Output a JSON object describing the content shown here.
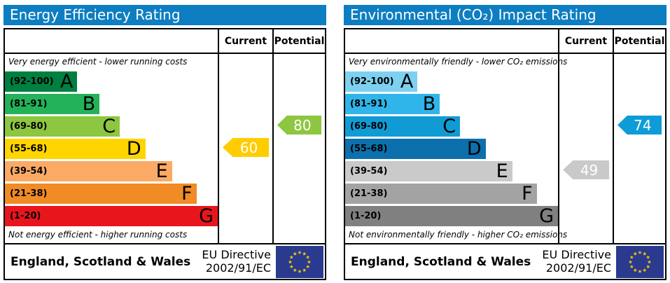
{
  "accent_colors": {
    "header_bar": "#0d7ec1",
    "eu_flag_blue": "#293a8f",
    "eu_flag_star": "#ffcc00"
  },
  "chart_data": [
    {
      "type": "epc-band-rating",
      "title": "Energy Efficiency Rating",
      "columns": [
        "Current",
        "Potential"
      ],
      "top_caption": "Very energy efficient - lower running costs",
      "bottom_caption": "Not energy efficient - higher running costs",
      "bands": [
        {
          "letter": "A",
          "range": "(92-100)",
          "min": 92,
          "max": 100,
          "color": "#008040",
          "width_pct": 34
        },
        {
          "letter": "B",
          "range": "(81-91)",
          "min": 81,
          "max": 91,
          "color": "#23b259",
          "width_pct": 44.5
        },
        {
          "letter": "C",
          "range": "(69-80)",
          "min": 69,
          "max": 80,
          "color": "#8dc63f",
          "width_pct": 54
        },
        {
          "letter": "D",
          "range": "(55-68)",
          "min": 55,
          "max": 68,
          "color": "#ffd500",
          "width_pct": 66
        },
        {
          "letter": "E",
          "range": "(39-54)",
          "min": 39,
          "max": 54,
          "color": "#fbaa65",
          "width_pct": 78.5
        },
        {
          "letter": "F",
          "range": "(21-38)",
          "min": 21,
          "max": 38,
          "color": "#f08b25",
          "width_pct": 90
        },
        {
          "letter": "G",
          "range": "(1-20)",
          "min": 1,
          "max": 20,
          "color": "#e9151d",
          "width_pct": 100
        }
      ],
      "current": {
        "value": 60,
        "band": "D",
        "color": "#ffcc00"
      },
      "potential": {
        "value": 80,
        "band": "C",
        "color": "#8dc63f"
      }
    },
    {
      "type": "epc-band-rating",
      "title": "Environmental (CO₂) Impact Rating",
      "columns": [
        "Current",
        "Potential"
      ],
      "top_caption": "Very environmentally friendly - lower CO₂ emissions",
      "bottom_caption": "Not environmentally friendly - higher CO₂ emissions",
      "bands": [
        {
          "letter": "A",
          "range": "(92-100)",
          "min": 92,
          "max": 100,
          "color": "#7ed0f0",
          "width_pct": 34
        },
        {
          "letter": "B",
          "range": "(81-91)",
          "min": 81,
          "max": 91,
          "color": "#2fb5e9",
          "width_pct": 44.5
        },
        {
          "letter": "C",
          "range": "(69-80)",
          "min": 69,
          "max": 80,
          "color": "#119bd4",
          "width_pct": 54
        },
        {
          "letter": "D",
          "range": "(55-68)",
          "min": 55,
          "max": 68,
          "color": "#0c70ad",
          "width_pct": 66
        },
        {
          "letter": "E",
          "range": "(39-54)",
          "min": 39,
          "max": 54,
          "color": "#cacaca",
          "width_pct": 78.5
        },
        {
          "letter": "F",
          "range": "(21-38)",
          "min": 21,
          "max": 38,
          "color": "#a3a3a3",
          "width_pct": 90
        },
        {
          "letter": "G",
          "range": "(1-20)",
          "min": 1,
          "max": 20,
          "color": "#808080",
          "width_pct": 100
        }
      ],
      "current": {
        "value": 49,
        "band": "E",
        "color": "#c9c9c9"
      },
      "potential": {
        "value": 74,
        "band": "C",
        "color": "#0d9cd8"
      }
    }
  ],
  "footer": {
    "region": "England, Scotland & Wales",
    "directive_line1": "EU Directive",
    "directive_line2": "2002/91/EC"
  }
}
